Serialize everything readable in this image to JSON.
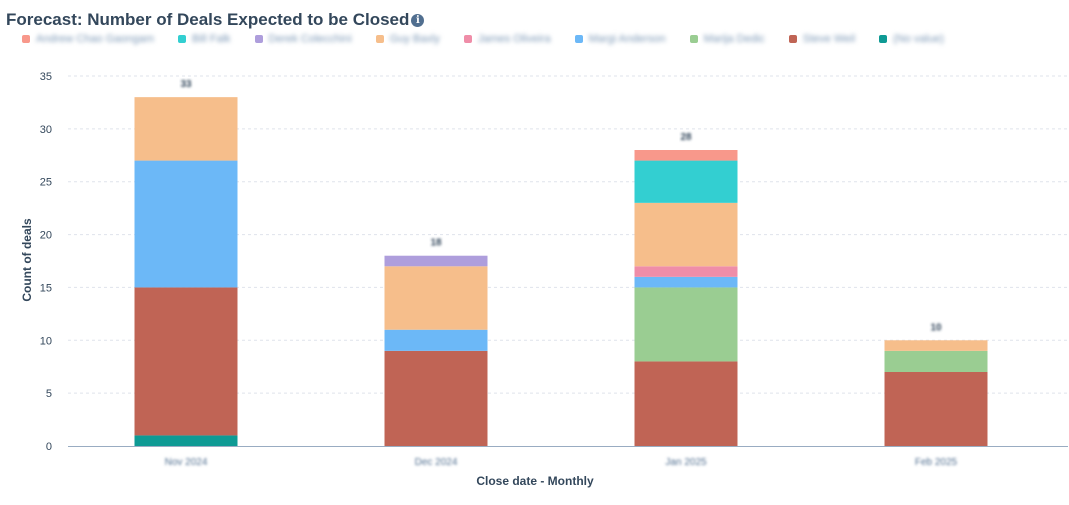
{
  "header": {
    "title": "Forecast: Number of Deals Expected to be Closed",
    "info_icon": "info-icon"
  },
  "chart_data": {
    "type": "bar",
    "stacked": true,
    "xlabel": "Close date - Monthly",
    "ylabel": "Count of deals",
    "ylim": [
      0,
      35
    ],
    "yticks": [
      0,
      5,
      10,
      15,
      20,
      25,
      30,
      35
    ],
    "categories": [
      "Nov 2024",
      "Dec 2024",
      "Jan 2025",
      "Feb 2025"
    ],
    "totals": [
      "33",
      "18",
      "28",
      "10"
    ],
    "grid": true,
    "legend_position": "top-left",
    "series": [
      {
        "name": "(No value)",
        "color": "#0e9a94",
        "values": [
          1,
          0,
          0,
          0
        ]
      },
      {
        "name": "Steve Weil",
        "color": "#c06455",
        "values": [
          14,
          9,
          8,
          7
        ]
      },
      {
        "name": "Marija Dedic",
        "color": "#9acd92",
        "values": [
          0,
          0,
          7,
          2
        ]
      },
      {
        "name": "Margi Anderson",
        "color": "#6cb8f7",
        "values": [
          12,
          2,
          1,
          0
        ]
      },
      {
        "name": "James Oliveira",
        "color": "#ef8da8",
        "values": [
          0,
          0,
          1,
          0
        ]
      },
      {
        "name": "Guy Baxly",
        "color": "#f6be8b",
        "values": [
          6,
          6,
          6,
          1
        ]
      },
      {
        "name": "Derek Colecchini",
        "color": "#ae9edc",
        "values": [
          0,
          1,
          0,
          0
        ]
      },
      {
        "name": "Bill Falk",
        "color": "#33cfd1",
        "values": [
          0,
          0,
          4,
          0
        ]
      },
      {
        "name": "Andrew Chao Gaongam",
        "color": "#f8988b",
        "values": [
          0,
          0,
          1,
          0
        ]
      }
    ],
    "legend_order": [
      "Andrew Chao Gaongam",
      "Bill Falk",
      "Derek Colecchini",
      "Guy Baxly",
      "James Oliveira",
      "Margi Anderson",
      "Marija Dedic",
      "Steve Weil",
      "(No value)"
    ]
  }
}
